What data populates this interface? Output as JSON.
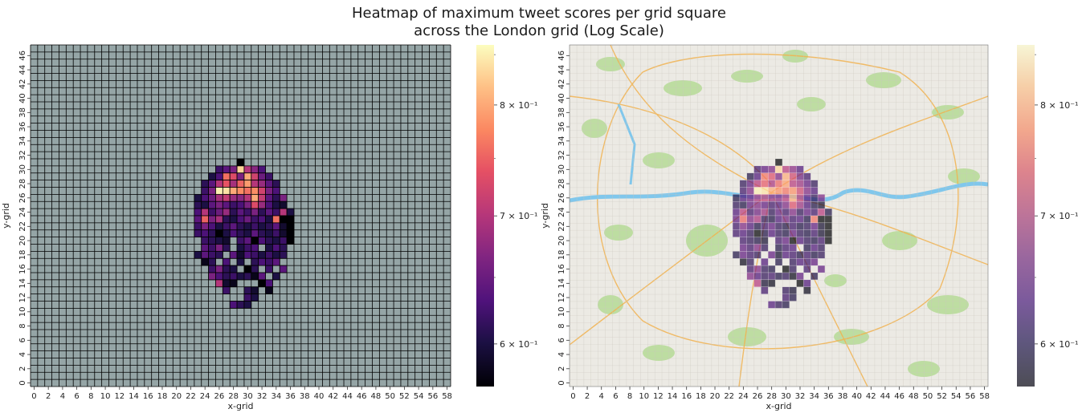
{
  "chart_data": {
    "type": "heatmap",
    "title": "Heatmap of maximum tweet scores per grid square\nacross the London grid (Log Scale)",
    "title_line1": "Heatmap of maximum tweet scores per grid square",
    "title_line2": "across the London grid (Log Scale)",
    "grid_size": {
      "cols": 59,
      "rows": 48
    },
    "missing_color": "#95a5a6",
    "colormap": "magma",
    "color_scale": "log",
    "vmin": 0.57,
    "vmax": 0.86,
    "colorbar": {
      "ticks": [
        0.6,
        0.7,
        0.8
      ],
      "tick_labels": [
        "6 × 10⁻¹",
        "7 × 10⁻¹",
        "8 × 10⁻¹"
      ]
    },
    "panels": [
      {
        "name": "plain",
        "xlabel": "x-grid",
        "ylabel": "y-grid",
        "background": "grey grid"
      },
      {
        "name": "map",
        "xlabel": "x-grid",
        "ylabel": "y-grid",
        "background": "London basemap",
        "overlay_alpha": 0.7
      }
    ],
    "x_ticks": [
      0,
      2,
      4,
      6,
      8,
      10,
      12,
      14,
      16,
      18,
      20,
      22,
      24,
      26,
      28,
      30,
      32,
      34,
      36,
      38,
      40,
      42,
      44,
      46,
      48,
      50,
      52,
      54,
      56,
      58
    ],
    "y_ticks": [
      0,
      2,
      4,
      6,
      8,
      10,
      12,
      14,
      16,
      18,
      20,
      22,
      24,
      26,
      28,
      30,
      32,
      34,
      36,
      38,
      40,
      42,
      44,
      46
    ],
    "cells": [
      {
        "y": 31,
        "xs": [
          29
        ],
        "v": [
          0.57
        ]
      },
      {
        "y": 30,
        "xs": [
          26,
          27,
          28,
          29,
          30,
          31,
          32
        ],
        "v": [
          0.62,
          0.64,
          0.66,
          0.83,
          0.7,
          0.67,
          0.63
        ]
      },
      {
        "y": 29,
        "xs": [
          25,
          26,
          27,
          28,
          29,
          30,
          31,
          32,
          33
        ],
        "v": [
          0.6,
          0.63,
          0.76,
          0.73,
          0.66,
          0.8,
          0.72,
          0.65,
          0.62
        ]
      },
      {
        "y": 28,
        "xs": [
          24,
          25,
          26,
          27,
          28,
          29,
          30,
          31,
          32,
          33,
          34
        ],
        "v": [
          0.61,
          0.64,
          0.7,
          0.74,
          0.69,
          0.75,
          0.79,
          0.7,
          0.68,
          0.64,
          0.61
        ]
      },
      {
        "y": 27,
        "xs": [
          24,
          25,
          26,
          27,
          28,
          29,
          30,
          31,
          32,
          33,
          34
        ],
        "v": [
          0.62,
          0.66,
          0.85,
          0.84,
          0.8,
          0.78,
          0.76,
          0.78,
          0.72,
          0.66,
          0.63
        ]
      },
      {
        "y": 26,
        "xs": [
          23,
          24,
          25,
          26,
          27,
          28,
          29,
          30,
          31,
          32,
          33,
          34,
          35
        ],
        "v": [
          0.6,
          0.63,
          0.65,
          0.69,
          0.71,
          0.68,
          0.67,
          0.7,
          0.8,
          0.71,
          0.64,
          0.61,
          0.66
        ]
      },
      {
        "y": 25,
        "xs": [
          23,
          24,
          25,
          26,
          27,
          28,
          29,
          30,
          31,
          32,
          33,
          34,
          35
        ],
        "v": [
          0.61,
          0.6,
          0.64,
          0.66,
          0.64,
          0.62,
          0.63,
          0.66,
          0.73,
          0.68,
          0.63,
          0.6,
          0.59
        ]
      },
      {
        "y": 24,
        "xs": [
          23,
          24,
          25,
          26,
          27,
          28,
          29,
          30,
          31,
          32,
          33,
          34,
          35,
          36
        ],
        "v": [
          0.63,
          0.7,
          0.62,
          0.65,
          0.68,
          0.61,
          0.64,
          0.62,
          0.66,
          0.61,
          0.64,
          0.62,
          0.7,
          0.6
        ]
      },
      {
        "y": 23,
        "xs": [
          23,
          24,
          25,
          26,
          27,
          28,
          29,
          30,
          31,
          32,
          33,
          34,
          35,
          36
        ],
        "v": [
          0.64,
          0.75,
          0.66,
          0.69,
          0.61,
          0.6,
          0.63,
          0.65,
          0.62,
          0.63,
          0.6,
          0.76,
          0.57,
          0.57
        ]
      },
      {
        "y": 22,
        "xs": [
          23,
          24,
          25,
          26,
          27,
          28,
          29,
          30,
          31,
          32,
          33,
          34,
          35,
          36
        ],
        "v": [
          0.62,
          0.66,
          0.63,
          0.6,
          0.62,
          0.64,
          0.61,
          0.6,
          0.62,
          0.6,
          0.61,
          0.64,
          0.59,
          0.57
        ]
      },
      {
        "y": 21,
        "xs": [
          23,
          24,
          25,
          26,
          27,
          28,
          29,
          30,
          31,
          32,
          33,
          34,
          35,
          36
        ],
        "v": [
          0.62,
          0.63,
          0.61,
          0.57,
          0.6,
          0.63,
          0.61,
          0.6,
          0.64,
          0.61,
          0.6,
          0.62,
          0.59,
          0.57
        ]
      },
      {
        "y": 20,
        "xs": [
          24,
          25,
          26,
          27,
          29,
          30,
          31,
          32,
          33,
          34,
          35,
          36
        ],
        "v": [
          0.62,
          0.61,
          0.6,
          0.59,
          0.62,
          0.64,
          0.57,
          0.63,
          0.61,
          0.6,
          0.62,
          0.57
        ]
      },
      {
        "y": 19,
        "xs": [
          24,
          25,
          26,
          27,
          29,
          30,
          31,
          33,
          34,
          35
        ],
        "v": [
          0.64,
          0.62,
          0.66,
          0.61,
          0.6,
          0.62,
          0.63,
          0.6,
          0.63,
          0.61
        ]
      },
      {
        "y": 18,
        "xs": [
          23,
          24,
          25,
          26,
          28,
          29,
          30,
          31,
          32,
          33,
          34,
          35
        ],
        "v": [
          0.6,
          0.64,
          0.62,
          0.61,
          0.64,
          0.59,
          0.63,
          0.62,
          0.6,
          0.62,
          0.6,
          0.61
        ]
      },
      {
        "y": 17,
        "xs": [
          24,
          25,
          27,
          29,
          31,
          32,
          33,
          34
        ],
        "v": [
          0.58,
          0.61,
          0.63,
          0.6,
          0.61,
          0.63,
          0.62,
          0.64
        ]
      },
      {
        "y": 16,
        "xs": [
          25,
          26,
          27,
          28,
          30,
          31,
          33,
          35
        ],
        "v": [
          0.62,
          0.66,
          0.61,
          0.6,
          0.57,
          0.61,
          0.62,
          0.64
        ]
      },
      {
        "y": 15,
        "xs": [
          25,
          26,
          27,
          28,
          29,
          30,
          31,
          32,
          34
        ],
        "v": [
          0.66,
          0.63,
          0.61,
          0.62,
          0.6,
          0.61,
          0.58,
          0.64,
          0.6
        ]
      },
      {
        "y": 14,
        "xs": [
          26,
          27,
          28,
          32,
          33
        ],
        "v": [
          0.7,
          0.59,
          0.58,
          0.57,
          0.63
        ]
      },
      {
        "y": 13,
        "xs": [
          27,
          30,
          31,
          33
        ],
        "v": [
          0.62,
          0.61,
          0.59,
          0.58
        ]
      },
      {
        "y": 12,
        "xs": [
          30,
          31
        ],
        "v": [
          0.62,
          0.6
        ]
      },
      {
        "y": 11,
        "xs": [
          28,
          29,
          30
        ],
        "v": [
          0.63,
          0.61,
          0.6
        ]
      }
    ]
  }
}
